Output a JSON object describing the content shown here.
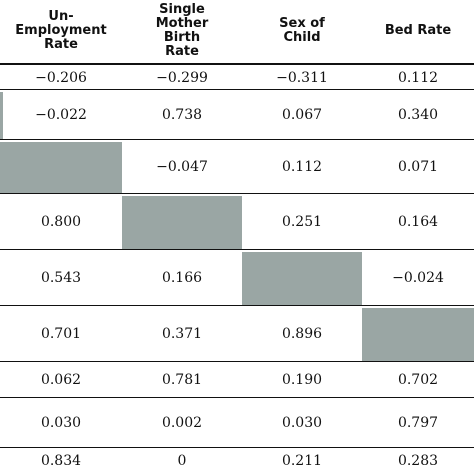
{
  "columns": [
    "Un-\nEmployment\nRate",
    "Single\nMother\nBirth\nRate",
    "Sex of\nChild",
    "Bed Rate"
  ],
  "rows": [
    [
      "−0.206",
      "−0.299",
      "−0.311",
      "0.112"
    ],
    [
      "−0.022",
      "0.738",
      "0.067",
      "0.340"
    ],
    [
      "",
      "−0.047",
      "0.112",
      "0.071"
    ],
    [
      "0.800",
      "",
      "0.251",
      "0.164"
    ],
    [
      "0.543",
      "0.166",
      "",
      "−0.024"
    ],
    [
      "0.701",
      "0.371",
      "0.896",
      ""
    ],
    [
      "0.062",
      "0.781",
      "0.190",
      "0.702"
    ],
    [
      "0.030",
      "0.002",
      "0.030",
      "0.797"
    ],
    [
      "0.834",
      "0",
      "0.211",
      "0.283"
    ]
  ],
  "shaded_cells": [
    [
      2,
      0
    ],
    [
      3,
      1
    ],
    [
      4,
      2
    ],
    [
      5,
      3
    ]
  ],
  "shade_color": "#9aa6a4"
}
